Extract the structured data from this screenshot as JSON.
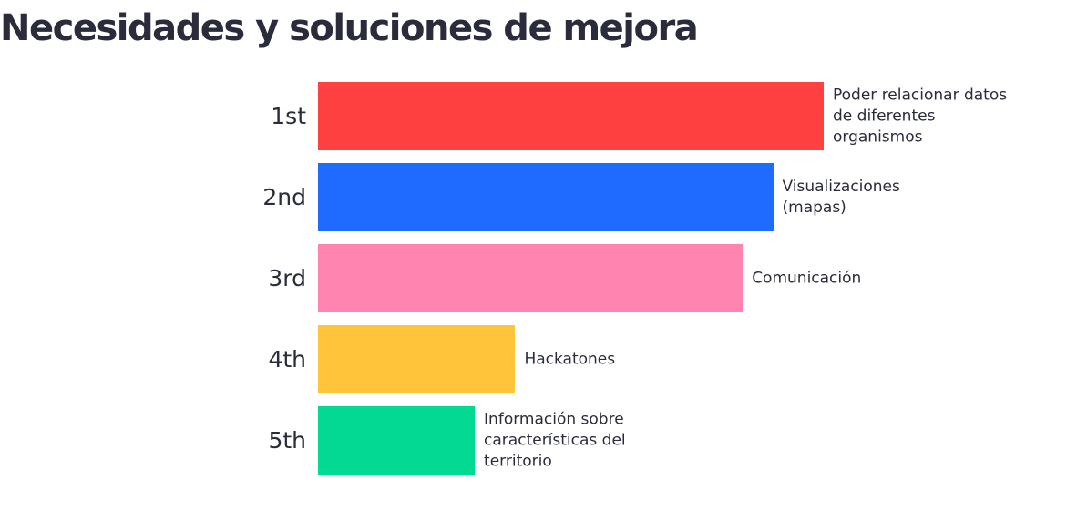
{
  "chart_data": {
    "type": "bar",
    "orientation": "horizontal",
    "title": "Necesidades y soluciones de mejora",
    "ranks": [
      "1st",
      "2nd",
      "3rd",
      "4th",
      "5th"
    ],
    "categories": [
      "Poder relacionar datos\nde diferentes\norganismos",
      "Visualizaciones\n(mapas)",
      "Comunicación",
      "Hackatones",
      "Información sobre\ncaracterísticas del\nterritorio"
    ],
    "values": [
      100,
      90,
      84,
      39,
      31
    ],
    "colors": [
      "#ff4040",
      "#1f6bff",
      "#ff85b0",
      "#ffc43a",
      "#03d993"
    ],
    "xlim": [
      0,
      100
    ]
  }
}
